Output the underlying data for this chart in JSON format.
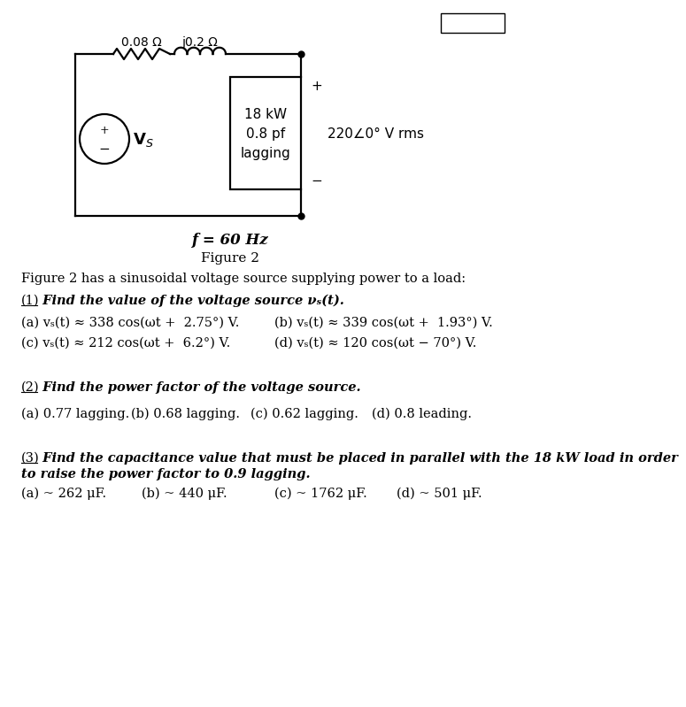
{
  "title": "Figure 2",
  "freq_label": "f = 60 Hz",
  "circuit": {
    "resistor_label": "0.08 Ω",
    "inductor_label": "j0.2 Ω",
    "load_line1": "18 kW",
    "load_line2": "0.8 pf",
    "load_line3": "lagging",
    "load_voltage": "220∠0° V rms",
    "plus": "+",
    "minus": "−"
  },
  "intro": "Figure 2 has a sinusoidal voltage source supplying power to a load:",
  "q1_label_prefix": "(1)",
  "q1_label_rest": " Find the value of the voltage source v",
  "q1_label_sub": "s",
  "q1_label_end": "(t).",
  "q1a": "(a) vₛ(t) ≈ 338 cos(ωt +  2.75°) V.",
  "q1b": "(b) vₛ(t) ≈ 339 cos(ωt +  1.93°) V.",
  "q1c": "(c) vₛ(t) ≈ 212 cos(ωt +  6.2°) V.",
  "q1d": "(d) vₛ(t) ≈ 120 cos(ωt − 70°) V.",
  "q2_label_prefix": "(2)",
  "q2_label_rest": " Find the power factor of the voltage source.",
  "q2a": "(a) 0.77 lagging.",
  "q2b": "(b) 0.68 lagging.",
  "q2c": "(c) 0.62 lagging.",
  "q2d": "(d) 0.8 leading.",
  "q3_label_prefix": "(3)",
  "q3_label_rest": " Find the capacitance value that must be placed in parallel with the 18 kW load in order",
  "q3_label_line2": "to raise the power factor to 0.9 lagging.",
  "q3a": "(a) ~ 262 μF.",
  "q3b": "(b) ~ 440 μF.",
  "q3c": "(c) ~ 1762 μF.",
  "q3d": "(d) ~ 501 μF.",
  "bg_color": "#ffffff"
}
